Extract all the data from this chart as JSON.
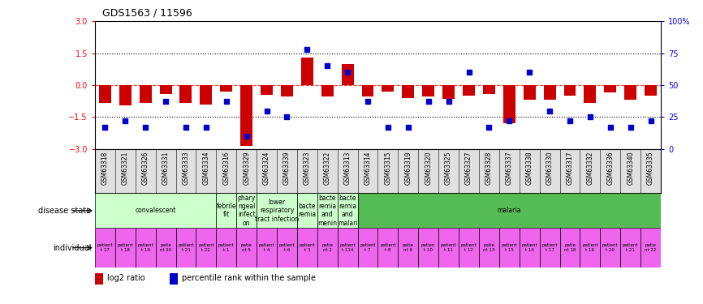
{
  "title": "GDS1563 / 11596",
  "samples": [
    "GSM63318",
    "GSM63321",
    "GSM63326",
    "GSM63331",
    "GSM63333",
    "GSM63334",
    "GSM63316",
    "GSM63329",
    "GSM63324",
    "GSM63339",
    "GSM63323",
    "GSM63322",
    "GSM63313",
    "GSM63314",
    "GSM63315",
    "GSM63319",
    "GSM63320",
    "GSM63325",
    "GSM63327",
    "GSM63328",
    "GSM63337",
    "GSM63338",
    "GSM63330",
    "GSM63317",
    "GSM63332",
    "GSM63336",
    "GSM63340",
    "GSM63335"
  ],
  "log2_ratio": [
    -0.85,
    -0.95,
    -0.85,
    -0.4,
    -0.85,
    -0.9,
    -0.3,
    -2.85,
    -0.45,
    -0.55,
    1.3,
    -0.55,
    1.0,
    -0.55,
    -0.3,
    -0.6,
    -0.55,
    -0.65,
    -0.5,
    -0.4,
    -1.8,
    -0.7,
    -0.7,
    -0.5,
    -0.85,
    -0.35,
    -0.7,
    -0.5
  ],
  "percentile": [
    17,
    22,
    17,
    37,
    17,
    17,
    37,
    10,
    30,
    25,
    78,
    65,
    60,
    37,
    17,
    17,
    37,
    37,
    60,
    17,
    22,
    60,
    30,
    22,
    25,
    17,
    17,
    22
  ],
  "disease_state_segments": [
    {
      "label": "convalescent",
      "start": 0,
      "end": 5
    },
    {
      "label": "febrile\nfit",
      "start": 6,
      "end": 6
    },
    {
      "label": "phary\nngeal\ninfect\non",
      "start": 7,
      "end": 7
    },
    {
      "label": "lower\nrespiratory\ntract infection",
      "start": 8,
      "end": 9
    },
    {
      "label": "bacte\nremia",
      "start": 10,
      "end": 10
    },
    {
      "label": "bacte\nremia\nand\nmenin",
      "start": 11,
      "end": 11
    },
    {
      "label": "bacte\nremia\nand\nmalari",
      "start": 12,
      "end": 12
    },
    {
      "label": "malaria",
      "start": 13,
      "end": 27
    }
  ],
  "individual_labels": [
    "patient\nt 17",
    "patient\nt 18",
    "patient\nt 19",
    "patie\nnt 20",
    "patient\nt 21",
    "patient\nt 22",
    "patient\nt 1",
    "patie\nnt 5",
    "patient\nt 4",
    "patient\nt 6",
    "patient\nt 3",
    "patie\nnt 2",
    "patient\nt 114",
    "patient\nt 7",
    "patient\nt 8",
    "patie\nnt 9",
    "patien\nt 10",
    "patient\nt 11",
    "patient\nt 12",
    "patie\nnt 13",
    "patient\nt 15",
    "patient\nt 16",
    "patient\nt 17",
    "patie\nnt 18",
    "patient\nt 19",
    "patient\nt 20",
    "patient\nt 21",
    "patie\nnt 22"
  ],
  "bar_color": "#CC0000",
  "square_color": "#0000CC",
  "convalescent_color": "#ccffcc",
  "malaria_color": "#55bb55",
  "individual_color": "#ee66ee",
  "label_row_bg": "#dddddd",
  "ylim_left": [
    -3,
    3
  ],
  "yticks_left": [
    -3,
    -1.5,
    0,
    1.5,
    3
  ],
  "yticks_right": [
    0,
    25,
    50,
    75,
    100
  ],
  "dotted_lines": [
    1.5,
    -1.5
  ]
}
